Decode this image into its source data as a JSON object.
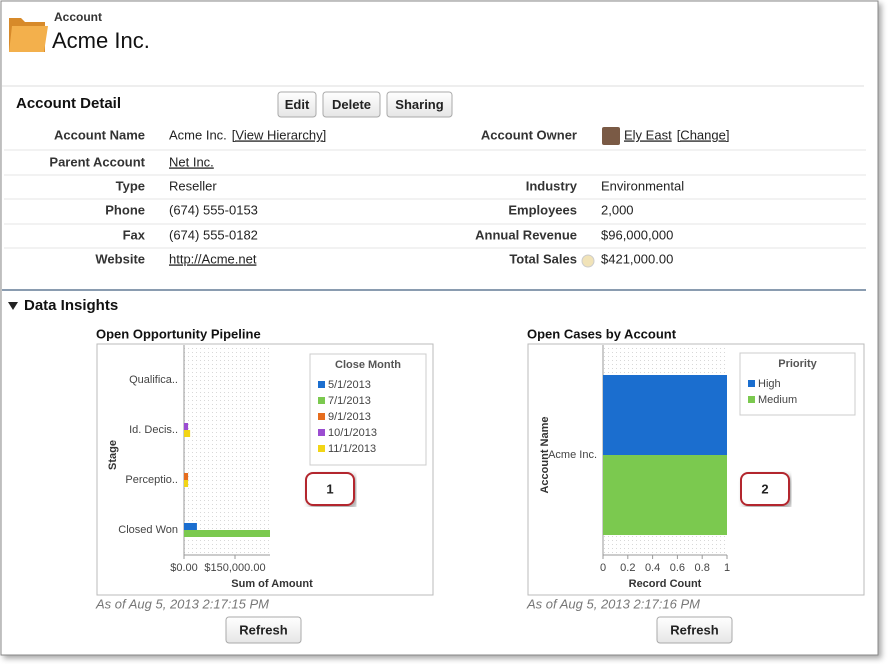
{
  "header": {
    "object": "Account",
    "title": "Acme Inc."
  },
  "detail": {
    "title": "Account Detail",
    "buttons": [
      "Edit",
      "Delete",
      "Sharing"
    ],
    "fields": [
      {
        "label": "Account Name",
        "value": "Acme Inc.",
        "action": "[View Hierarchy]"
      },
      {
        "label": "Account Owner",
        "value": "Ely East",
        "action": "[Change]"
      },
      {
        "label": "Parent Account",
        "value": "Net Inc."
      },
      {
        "label": "Type",
        "value": "Reseller"
      },
      {
        "label": "Industry",
        "value": "Environmental"
      },
      {
        "label": "Phone",
        "value": "(674) 555-0153"
      },
      {
        "label": "Employees",
        "value": "2,000"
      },
      {
        "label": "Fax",
        "value": "(674) 555-0182"
      },
      {
        "label": "Annual Revenue",
        "value": "$96,000,000"
      },
      {
        "label": "Website",
        "value": "http://Acme.net"
      },
      {
        "label": "Total Sales",
        "value": "$421,000.00"
      }
    ]
  },
  "insights": {
    "title": "Data Insights"
  },
  "chart_data": [
    {
      "type": "bar",
      "orientation": "horizontal",
      "title": "Open Opportunity Pipeline",
      "categories": [
        "Qualifica..",
        "Id. Decis..",
        "Perceptio..",
        "Closed Won"
      ],
      "series": [
        {
          "name": "5/1/2013",
          "color": "#1b6ecf",
          "values": [
            null,
            null,
            null,
            38000
          ]
        },
        {
          "name": "7/1/2013",
          "color": "#7bc94f",
          "values": [
            null,
            null,
            null,
            253000
          ]
        },
        {
          "name": "9/1/2013",
          "color": "#e66d1e",
          "values": [
            null,
            null,
            12000,
            null
          ]
        },
        {
          "name": "10/1/2013",
          "color": "#9b4dd1",
          "values": [
            null,
            12000,
            null,
            null
          ]
        },
        {
          "name": "11/1/2013",
          "color": "#f2d516",
          "values": [
            null,
            18000,
            12000,
            null
          ]
        }
      ],
      "xlim": [
        0,
        253000
      ],
      "xticks": [
        {
          "value": 0,
          "label": "$0.00"
        },
        {
          "value": 150000,
          "label": "$150,000.00"
        }
      ],
      "xlabel": "Sum of Amount",
      "ylabel": "Stage",
      "legend_title": "Close Month",
      "footer": "As of Aug 5, 2013 2:17:15 PM",
      "button": "Refresh",
      "callout": "1"
    },
    {
      "type": "bar",
      "orientation": "horizontal",
      "title": "Open Cases by Account",
      "categories": [
        "Acme Inc."
      ],
      "series": [
        {
          "name": "High",
          "color": "#1b6ecf",
          "values": [
            1
          ]
        },
        {
          "name": "Medium",
          "color": "#7bc94f",
          "values": [
            1
          ]
        }
      ],
      "xlim": [
        0,
        1
      ],
      "xticks": [
        0,
        0.2,
        0.4,
        0.6,
        0.8,
        1
      ],
      "xlabel": "Record Count",
      "ylabel": "Account Name",
      "legend_title": "Priority",
      "footer": "As of Aug 5, 2013 2:17:16 PM",
      "button": "Refresh",
      "callout": "2"
    }
  ]
}
